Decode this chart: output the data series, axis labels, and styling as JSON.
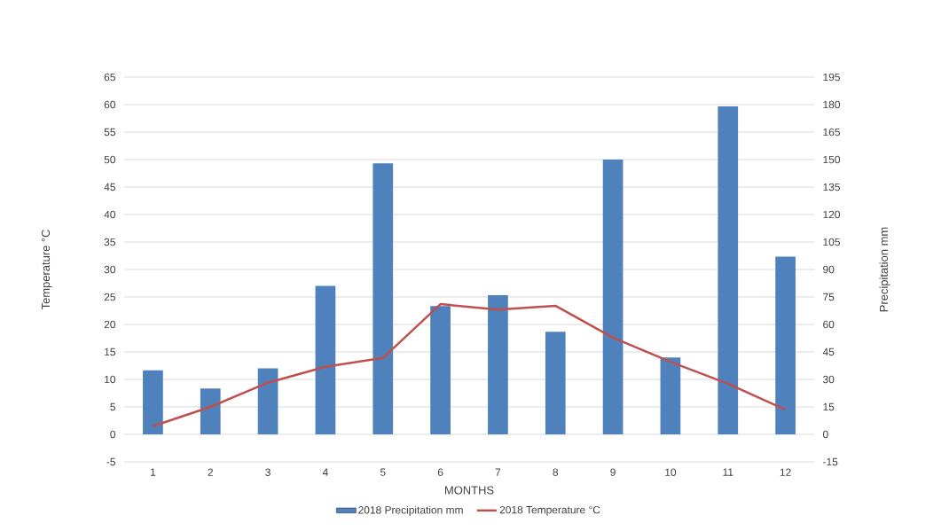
{
  "chart_data": {
    "type": "bar",
    "xlabel": "MONTHS",
    "ylabel": "Temperature °C",
    "y2label": "Precipitation mm",
    "categories": [
      "1",
      "2",
      "3",
      "4",
      "5",
      "6",
      "7",
      "8",
      "9",
      "10",
      "11",
      "12"
    ],
    "series": [
      {
        "name": "2018 Precipitation mm",
        "axis": "y2",
        "color": "#4f81bd",
        "values": [
          35,
          25,
          36,
          81,
          148,
          70,
          76,
          56,
          150,
          42,
          179,
          97
        ]
      },
      {
        "name": "2018 Temperature °C",
        "type": "line",
        "color": "#c0504d",
        "values": [
          1.5,
          5,
          9.4,
          12.3,
          13.9,
          23.7,
          22.7,
          23.4,
          17.6,
          13.2,
          9.2,
          4.5
        ]
      }
    ],
    "ylim": [
      -5,
      65
    ],
    "yticks": [
      -5,
      0,
      5,
      10,
      15,
      20,
      25,
      30,
      35,
      40,
      45,
      50,
      55,
      60,
      65
    ],
    "y2lim": [
      -15,
      195
    ],
    "y2ticks": [
      -15,
      0,
      15,
      30,
      45,
      60,
      75,
      90,
      105,
      120,
      135,
      150,
      165,
      180,
      195
    ],
    "grid": "y",
    "legend": "bottom"
  }
}
